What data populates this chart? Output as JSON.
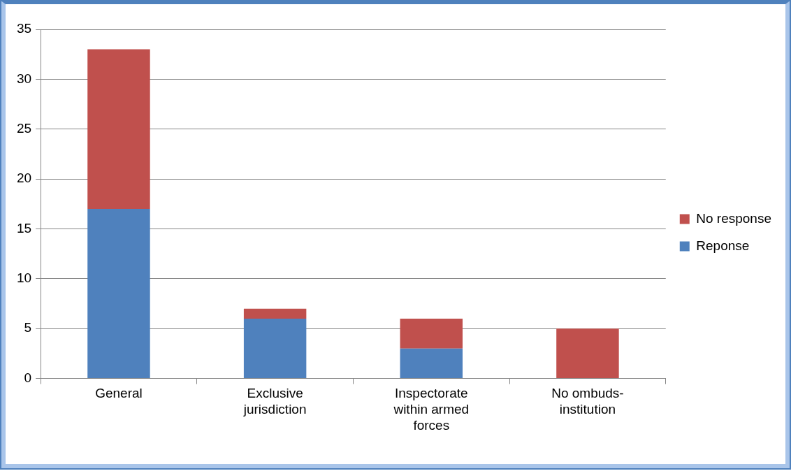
{
  "chart_data": {
    "type": "bar",
    "stacked": true,
    "categories": [
      "General",
      "Exclusive jurisdiction",
      "Inspectorate within armed forces",
      "No ombuds-institution"
    ],
    "series": [
      {
        "name": "Reponse",
        "color": "#4f81bd",
        "values": [
          17,
          6,
          3,
          0
        ]
      },
      {
        "name": "No response",
        "color": "#c0504d",
        "values": [
          16,
          1,
          3,
          5
        ]
      }
    ],
    "ylim": [
      0,
      35
    ],
    "yticks": [
      0,
      5,
      10,
      15,
      20,
      25,
      30,
      35
    ],
    "grid": "y",
    "legend": "right"
  }
}
